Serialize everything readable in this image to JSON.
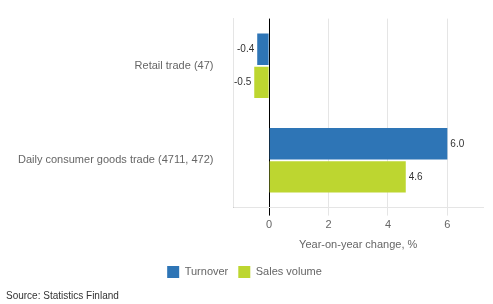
{
  "chart_data": {
    "type": "bar",
    "orientation": "horizontal",
    "categories": [
      "Retail trade (47)",
      "Daily consumer goods trade (4711, 472)"
    ],
    "series": [
      {
        "name": "Turnover",
        "color": "#2e75b6",
        "values": [
          -0.4,
          6.0
        ],
        "value_labels": [
          "-0.4",
          "6.0"
        ]
      },
      {
        "name": "Sales volume",
        "color": "#bdd630",
        "values": [
          -0.5,
          4.6
        ]
      }
    ],
    "xlabel": "Year-on-year change, %",
    "xlim": [
      -1.2,
      7.2
    ],
    "xticks": [
      0,
      2,
      4,
      6
    ],
    "grid": true,
    "legend": "bottom",
    "data_labels": true,
    "annotations": [
      "Source: Statistics Finland"
    ]
  }
}
